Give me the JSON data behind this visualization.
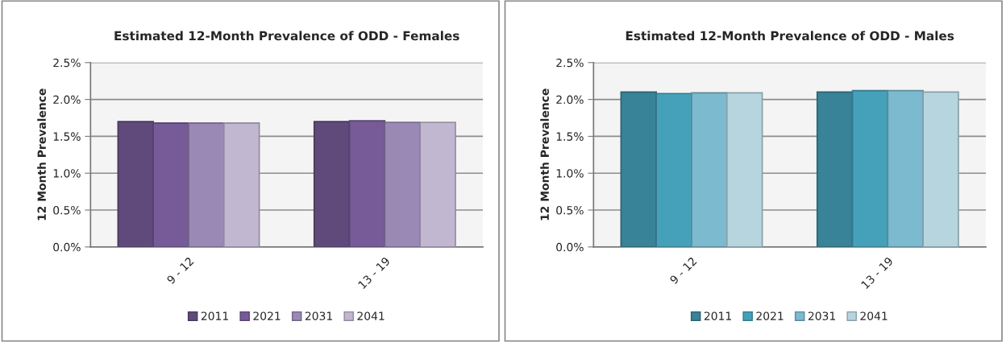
{
  "chart_data": [
    {
      "type": "bar",
      "title": "Estimated 12-Month Prevalence of ODD - Females",
      "ylabel": "12 Month Prevalence",
      "categories": [
        "9 - 12",
        "13 - 19"
      ],
      "series": [
        {
          "name": "2011",
          "color": "#604a7b",
          "values": [
            1.7,
            1.7
          ]
        },
        {
          "name": "2021",
          "color": "#765b98",
          "values": [
            1.68,
            1.71
          ]
        },
        {
          "name": "2031",
          "color": "#9a88b5",
          "values": [
            1.68,
            1.69
          ]
        },
        {
          "name": "2041",
          "color": "#c1b7d1",
          "values": [
            1.68,
            1.69
          ]
        }
      ],
      "ylim": [
        0,
        2.5
      ],
      "yticks": [
        {
          "value": 0,
          "label": "0.0%"
        },
        {
          "value": 0.5,
          "label": "0.5%"
        },
        {
          "value": 1.0,
          "label": "1.0%"
        },
        {
          "value": 1.5,
          "label": "1.5%"
        },
        {
          "value": 2.0,
          "label": "2.0%"
        },
        {
          "value": 2.5,
          "label": "2.5%"
        }
      ],
      "grid": "y",
      "legend": "bottom"
    },
    {
      "type": "bar",
      "title": "Estimated 12-Month Prevalence of ODD - Males",
      "ylabel": "12 Month Prevalence",
      "categories": [
        "9 - 12",
        "13 - 19"
      ],
      "series": [
        {
          "name": "2011",
          "color": "#388397",
          "values": [
            2.1,
            2.1
          ]
        },
        {
          "name": "2021",
          "color": "#45a1b9",
          "values": [
            2.08,
            2.12
          ]
        },
        {
          "name": "2031",
          "color": "#7bbacf",
          "values": [
            2.09,
            2.12
          ]
        },
        {
          "name": "2041",
          "color": "#b6d5df",
          "values": [
            2.09,
            2.1
          ]
        }
      ],
      "ylim": [
        0,
        2.5
      ],
      "yticks": [
        {
          "value": 0,
          "label": "0.0%"
        },
        {
          "value": 0.5,
          "label": "0.5%"
        },
        {
          "value": 1.0,
          "label": "1.0%"
        },
        {
          "value": 1.5,
          "label": "1.5%"
        },
        {
          "value": 2.0,
          "label": "2.0%"
        },
        {
          "value": 2.5,
          "label": "2.5%"
        }
      ],
      "grid": "y",
      "legend": "bottom"
    }
  ]
}
